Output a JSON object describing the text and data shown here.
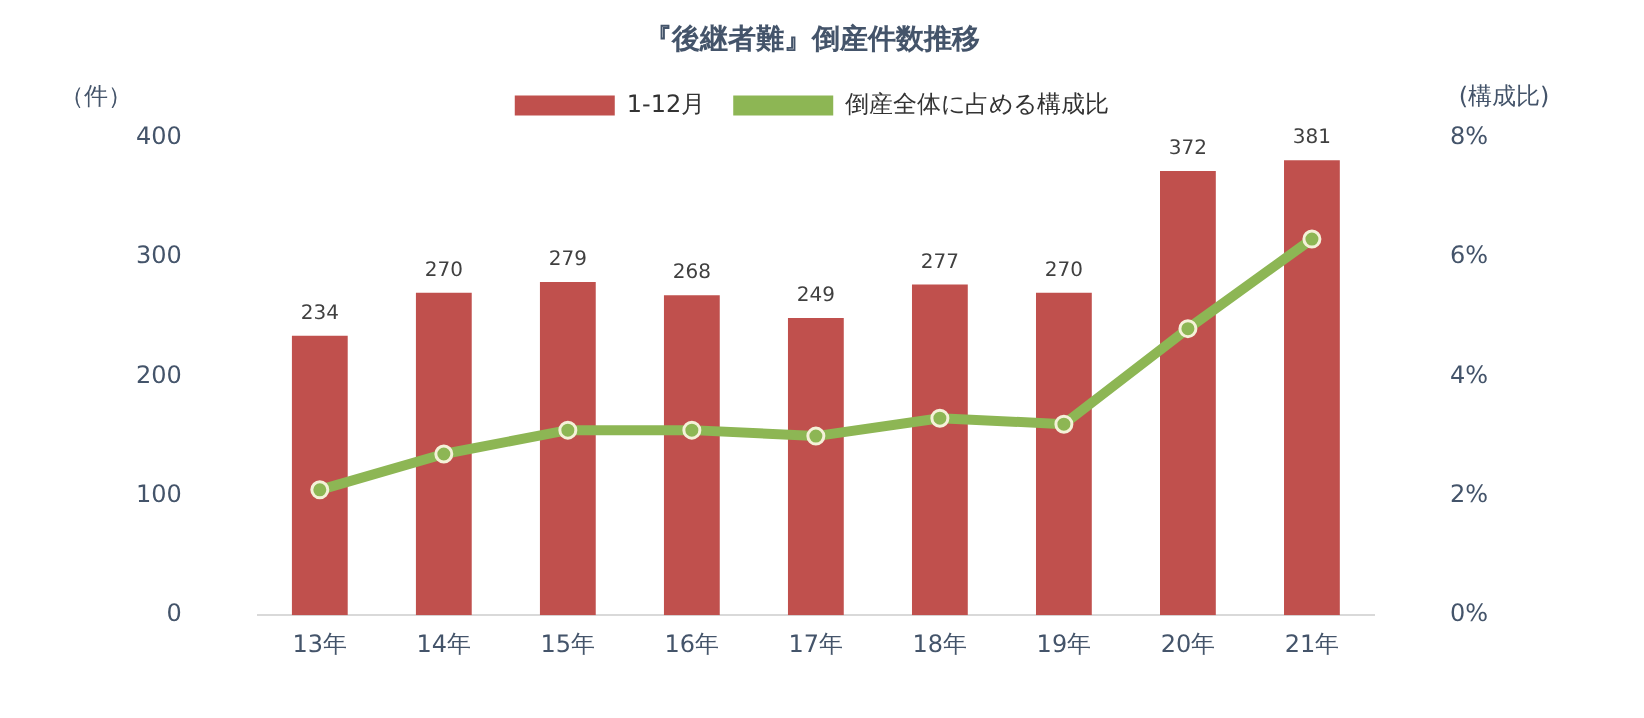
{
  "chart_data": {
    "type": "bar",
    "title": "『後継者難』倒産件数推移",
    "ylabel": "（件）",
    "y2label": "(構成比)",
    "categories": [
      "13年",
      "14年",
      "15年",
      "16年",
      "17年",
      "18年",
      "19年",
      "20年",
      "21年"
    ],
    "series": [
      {
        "name": "1-12月",
        "color": "#c0504d",
        "values": [
          234,
          270,
          279,
          268,
          249,
          277,
          270,
          372,
          381
        ],
        "value_labels": [
          "234",
          "270",
          "279",
          "268",
          "249",
          "277",
          "270",
          "372",
          "381"
        ]
      },
      {
        "name": "倒産全体に占める構成比",
        "type": "line",
        "axis": "y2",
        "color": "#8db654",
        "marker": "circle",
        "values": [
          2.1,
          2.7,
          3.1,
          3.1,
          3.0,
          3.3,
          3.2,
          4.8,
          6.3
        ]
      }
    ],
    "ylim": [
      0,
      400
    ],
    "yticks": [
      0,
      100,
      200,
      300,
      400
    ],
    "y2lim": [
      0,
      8
    ],
    "y2ticks": [
      {
        "value": 0,
        "label": "0%"
      },
      {
        "value": 2,
        "label": "2%"
      },
      {
        "value": 4,
        "label": "4%"
      },
      {
        "value": 6,
        "label": "6%"
      },
      {
        "value": 8,
        "label": "8%"
      }
    ],
    "grid": false,
    "legend": "top"
  }
}
